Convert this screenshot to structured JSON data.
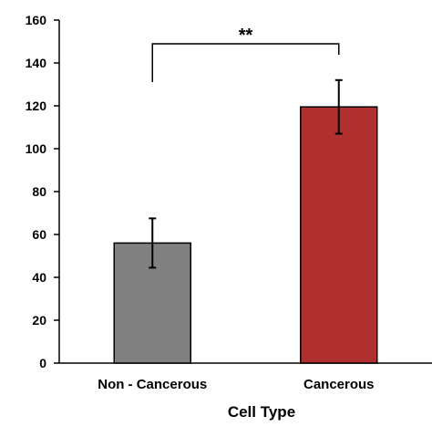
{
  "chart_data": {
    "type": "bar",
    "title": "",
    "xlabel": "Cell Type",
    "ylabel": "",
    "ylim": [
      0,
      160
    ],
    "yticks": [
      "0",
      "20",
      "40",
      "60",
      "80",
      "100",
      "120",
      "140",
      "160"
    ],
    "categories": [
      "Non - Cancerous",
      "Cancerous"
    ],
    "series": [
      {
        "values": [
          56,
          119.5
        ],
        "error": [
          11.5,
          12.5
        ],
        "colors": [
          "#808080",
          "#b03030"
        ]
      }
    ],
    "grid": false,
    "legend": "none",
    "annotations": [
      {
        "text": "**",
        "between": [
          "Non - Cancerous",
          "Cancerous"
        ]
      }
    ]
  }
}
